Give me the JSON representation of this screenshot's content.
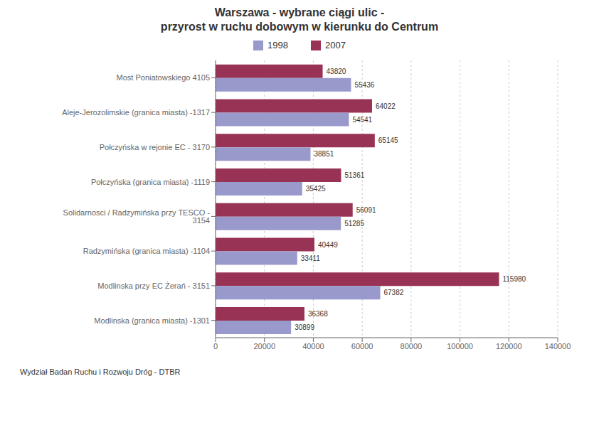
{
  "chart_data": {
    "type": "bar",
    "orientation": "horizontal",
    "title": "Warszawa - wybrane ciągi ulic -",
    "subtitle": "przyrost w ruchu dobowym w kierunku do Centrum",
    "footer": "Wydział Badan Ruchu i Rozwoju Dróg - DTBR",
    "categories": [
      "Most Poniatowskiego 4105",
      "Aleje-Jerozolimskie (granica miasta) -1317",
      "Połczyńska w rejonie EC - 3170",
      "Połczyńska (granica miasta) -1119",
      "Solidarnosci / Radzymińska przy TESCO - 3154",
      "Radzymińska (granica miasta) -1104",
      "Modlinska przy EC Żerań - 3151",
      "Modlinska (granica miasta) -1301"
    ],
    "series": [
      {
        "name": "1998",
        "color": "#9999cc",
        "values": [
          55436,
          54541,
          38851,
          35425,
          51285,
          33411,
          67382,
          30899
        ]
      },
      {
        "name": "2007",
        "color": "#993355",
        "values": [
          43820,
          64022,
          65145,
          51361,
          56091,
          40449,
          115980,
          36368
        ]
      }
    ],
    "xlim": [
      0,
      140000
    ],
    "xticks": [
      0,
      20000,
      40000,
      60000,
      80000,
      100000,
      120000,
      140000
    ],
    "grid": true,
    "data_labels": true
  }
}
